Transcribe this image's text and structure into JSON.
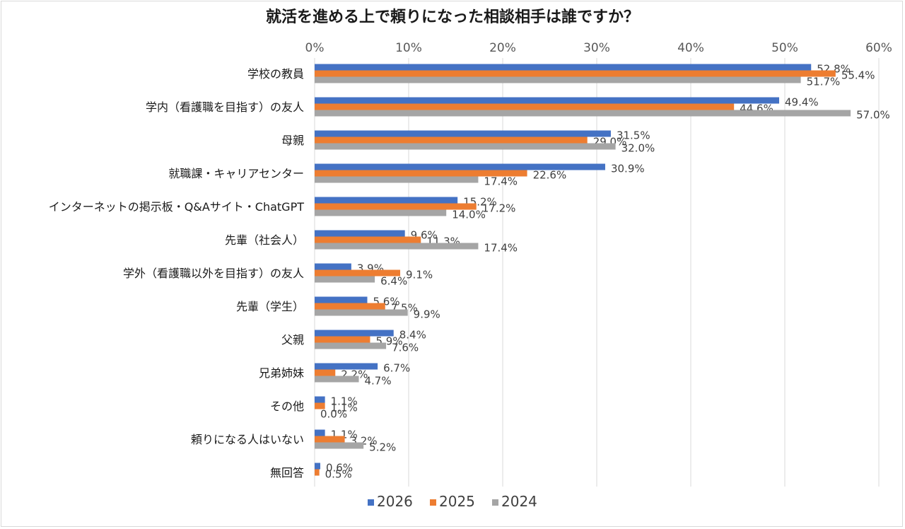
{
  "chart_data": {
    "type": "bar",
    "orientation": "horizontal",
    "title": "就活を進める上で頼りになった相談相手は誰ですか？",
    "xlabel": "",
    "ylabel": "",
    "xlim": [
      0,
      60
    ],
    "x_ticks": [
      "0%",
      "10%",
      "20%",
      "30%",
      "40%",
      "50%",
      "60%"
    ],
    "grid": true,
    "legend_position": "bottom",
    "categories": [
      "学校の教員",
      "学内（看護職を目指す）の友人",
      "母親",
      "就職課・キャリアセンター",
      "インターネットの掲示板・Q&Aサイト・ChatGPT",
      "先輩（社会人）",
      "学外（看護職以外を目指す）の友人",
      "先輩（学生）",
      "父親",
      "兄弟姉妹",
      "その他",
      "頼りになる人はいない",
      "無回答"
    ],
    "series": [
      {
        "name": "2026",
        "color": "#4472c4",
        "values": [
          52.8,
          49.4,
          31.5,
          30.9,
          15.2,
          9.6,
          3.9,
          5.6,
          8.4,
          6.7,
          1.1,
          1.1,
          0.6
        ]
      },
      {
        "name": "2025",
        "color": "#ed7d31",
        "values": [
          55.4,
          44.6,
          29.0,
          22.6,
          17.2,
          11.3,
          9.1,
          7.5,
          5.9,
          2.2,
          1.1,
          3.2,
          0.5
        ]
      },
      {
        "name": "2024",
        "color": "#a5a5a5",
        "values": [
          51.7,
          57.0,
          32.0,
          17.4,
          14.0,
          17.4,
          6.4,
          9.9,
          7.6,
          4.7,
          0.0,
          5.2,
          null
        ]
      }
    ]
  }
}
